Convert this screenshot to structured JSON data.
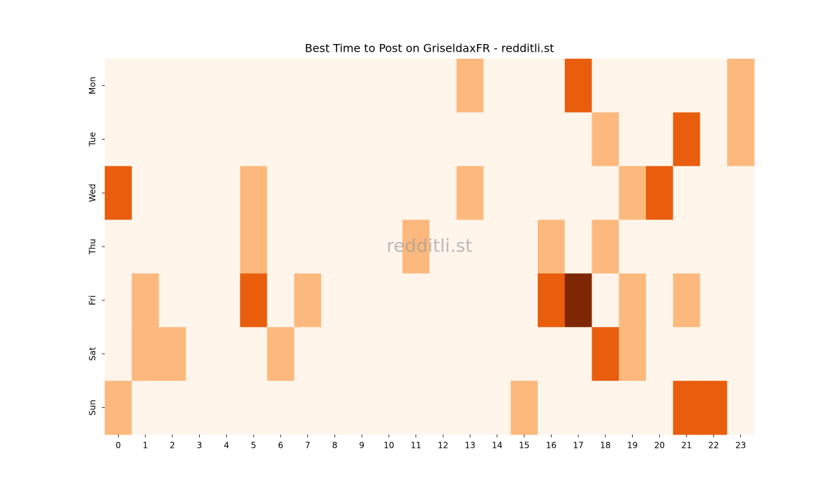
{
  "chart_data": {
    "type": "heatmap",
    "title": "Best Time to Post on GriseldaxFR - redditli.st",
    "watermark": "redditli.st",
    "x": [
      0,
      1,
      2,
      3,
      4,
      5,
      6,
      7,
      8,
      9,
      10,
      11,
      12,
      13,
      14,
      15,
      16,
      17,
      18,
      19,
      20,
      21,
      22,
      23
    ],
    "y": [
      "Mon",
      "Tue",
      "Wed",
      "Thu",
      "Fri",
      "Sat",
      "Sun"
    ],
    "values": [
      [
        0,
        0,
        0,
        0,
        0,
        0,
        0,
        0,
        0,
        0,
        0,
        0,
        0,
        1,
        0,
        0,
        0,
        2,
        0,
        0,
        0,
        0,
        0,
        1
      ],
      [
        0,
        0,
        0,
        0,
        0,
        0,
        0,
        0,
        0,
        0,
        0,
        0,
        0,
        0,
        0,
        0,
        0,
        0,
        1,
        0,
        0,
        2,
        0,
        1
      ],
      [
        2,
        0,
        0,
        0,
        0,
        1,
        0,
        0,
        0,
        0,
        0,
        0,
        0,
        1,
        0,
        0,
        0,
        0,
        0,
        1,
        2,
        0,
        0,
        0
      ],
      [
        0,
        0,
        0,
        0,
        0,
        1,
        0,
        0,
        0,
        0,
        0,
        1,
        0,
        0,
        0,
        0,
        1,
        0,
        1,
        0,
        0,
        0,
        0,
        0
      ],
      [
        0,
        1,
        0,
        0,
        0,
        2,
        0,
        1,
        0,
        0,
        0,
        0,
        0,
        0,
        0,
        0,
        2,
        3,
        0,
        1,
        0,
        1,
        0,
        0
      ],
      [
        0,
        1,
        1,
        0,
        0,
        0,
        1,
        0,
        0,
        0,
        0,
        0,
        0,
        0,
        0,
        0,
        0,
        0,
        2,
        1,
        0,
        0,
        0,
        0
      ],
      [
        1,
        0,
        0,
        0,
        0,
        0,
        0,
        0,
        0,
        0,
        0,
        0,
        0,
        0,
        0,
        1,
        0,
        0,
        0,
        0,
        0,
        2,
        2,
        0
      ]
    ],
    "vlim": [
      0,
      3
    ],
    "colorscale": [
      "#fff5eb",
      "#fdb97d",
      "#e95e0d",
      "#7f2704"
    ]
  }
}
